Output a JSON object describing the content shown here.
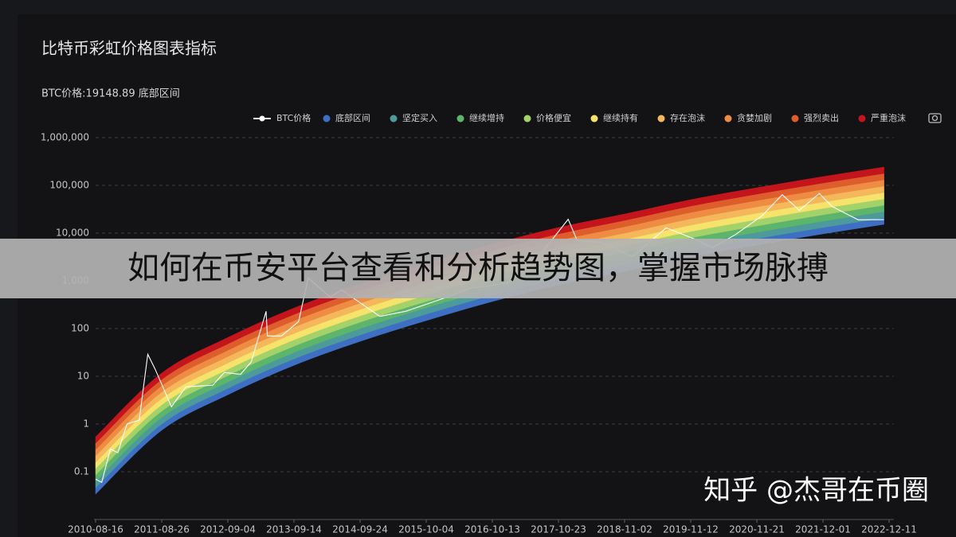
{
  "chart_data": {
    "type": "rainbow",
    "title": "比特币彩虹价格图表指标",
    "subtitle": "BTC价格:19148.89 底部区间",
    "log_scale": true,
    "grid": true,
    "ylim": [
      0.01,
      1000000
    ],
    "yticks": [
      0.1,
      1,
      10,
      100,
      {
        "value": 1000,
        "label": "1,000"
      },
      {
        "value": 10000,
        "label": "10,000"
      },
      {
        "value": 100000,
        "label": "100,000"
      },
      {
        "value": 1000000,
        "label": "1,000,000"
      }
    ],
    "xlim": [
      "2010-08-07",
      "2023-01-07"
    ],
    "xticks": [
      "2010-08-16",
      "2011-08-26",
      "2012-09-04",
      "2013-09-14",
      "2014-09-24",
      "2015-10-04",
      "2016-10-13",
      "2017-10-23",
      "2018-11-02",
      "2019-11-12",
      "2020-11-21",
      "2021-12-01",
      "2022-12-11"
    ],
    "x": [
      "2010-08-16",
      "2011-08-26",
      "2012-09-04",
      "2013-09-14",
      "2014-09-24",
      "2015-10-04",
      "2016-10-13",
      "2017-10-23",
      "2018-11-02",
      "2019-11-12",
      "2020-11-21",
      "2021-12-01",
      "2022-11-12"
    ],
    "series": [
      {
        "name": "BTC价格",
        "color": "#ffffff",
        "x": [
          "2010-08-16",
          "2010-09-20",
          "2010-11-08",
          "2010-12-20",
          "2011-02-10",
          "2011-04-20",
          "2011-06-08",
          "2011-07-20",
          "2011-10-20",
          "2012-01-10",
          "2012-06-10",
          "2012-08-15",
          "2012-11-15",
          "2013-01-15",
          "2013-04-09",
          "2013-04-16",
          "2013-07-05",
          "2013-10-10",
          "2013-12-04",
          "2014-04-10",
          "2014-06-10",
          "2015-01-14",
          "2015-06-10",
          "2016-01-10",
          "2016-06-15",
          "2017-01-05",
          "2017-06-10",
          "2017-12-17",
          "2018-02-06",
          "2018-06-20",
          "2018-12-15",
          "2019-06-26",
          "2019-12-17",
          "2020-03-13",
          "2020-07-20",
          "2020-12-20",
          "2021-04-14",
          "2021-07-20",
          "2021-11-10",
          "2022-01-22",
          "2022-06-18",
          "2022-11-12"
        ],
        "values": [
          0.07,
          0.06,
          0.3,
          0.25,
          1.0,
          1.2,
          29,
          14,
          2.3,
          6,
          6.5,
          12,
          11,
          20,
          230,
          70,
          70,
          140,
          1150,
          450,
          650,
          180,
          230,
          430,
          700,
          900,
          2500,
          19500,
          7000,
          6500,
          3200,
          12900,
          7200,
          4900,
          9200,
          23000,
          63500,
          30000,
          67500,
          36000,
          19000,
          19148.89
        ]
      },
      {
        "name": "底部区间",
        "color": "#3f6fc2",
        "values": [
          [
            0.034,
            0.046
          ],
          [
            0.74,
            1.0
          ],
          [
            4.1,
            5.57
          ],
          [
            17,
            23.1
          ],
          [
            54,
            73.4
          ],
          [
            147,
            200
          ],
          [
            369,
            501
          ],
          [
            826,
            1123
          ],
          [
            1585,
            2154
          ],
          [
            3162,
            4297
          ],
          [
            5623,
            7642
          ],
          [
            9620,
            13074
          ],
          [
            15250,
            20725
          ]
        ]
      },
      {
        "name": "坚定买入",
        "color": "#4d9a9c",
        "values": [
          [
            0.046,
            0.063
          ],
          [
            1.0,
            1.37
          ],
          [
            5.57,
            7.57
          ],
          [
            23.1,
            31.4
          ],
          [
            73.4,
            99.7
          ],
          [
            200,
            272
          ],
          [
            501,
            682
          ],
          [
            1123,
            1526
          ],
          [
            2154,
            2928
          ],
          [
            4297,
            5840
          ],
          [
            7642,
            10386
          ],
          [
            13074,
            17768
          ],
          [
            20725,
            28167
          ]
        ]
      },
      {
        "name": "继续增持",
        "color": "#5db56b",
        "values": [
          [
            0.063,
            0.085
          ],
          [
            1.37,
            1.86
          ],
          [
            7.57,
            10.3
          ],
          [
            31.4,
            42.7
          ],
          [
            99.7,
            136
          ],
          [
            272,
            369
          ],
          [
            682,
            926
          ],
          [
            1526,
            2073
          ],
          [
            2928,
            3978
          ],
          [
            5840,
            7937
          ],
          [
            10386,
            14114
          ],
          [
            17768,
            24146
          ],
          [
            28167,
            38278
          ]
        ]
      },
      {
        "name": "价格便宜",
        "color": "#a4d26a",
        "values": [
          [
            0.085,
            0.116
          ],
          [
            1.86,
            2.52
          ],
          [
            10.3,
            14.0
          ],
          [
            42.7,
            58.0
          ],
          [
            136,
            184
          ],
          [
            369,
            501
          ],
          [
            926,
            1258
          ],
          [
            2073,
            2817
          ],
          [
            3978,
            5405
          ],
          [
            7937,
            10782
          ],
          [
            14114,
            19174
          ],
          [
            24146,
            32804
          ],
          [
            38278,
            52003
          ]
        ]
      },
      {
        "name": "继续持有",
        "color": "#f5e36b",
        "values": [
          [
            0.116,
            0.158
          ],
          [
            2.52,
            3.43
          ],
          [
            14.0,
            19.0
          ],
          [
            58.0,
            78.9
          ],
          [
            184,
            251
          ],
          [
            501,
            682
          ],
          [
            1258,
            1712
          ],
          [
            2817,
            3833
          ],
          [
            5405,
            7354
          ],
          [
            10782,
            14672
          ],
          [
            19174,
            26091
          ],
          [
            32804,
            44637
          ],
          [
            52003,
            70760
          ]
        ]
      },
      {
        "name": "存在泡沫",
        "color": "#f5b75c",
        "values": [
          [
            0.158,
            0.215
          ],
          [
            3.43,
            4.67
          ],
          [
            19.0,
            25.9
          ],
          [
            78.9,
            107
          ],
          [
            251,
            341
          ],
          [
            682,
            928
          ],
          [
            1712,
            2328
          ],
          [
            3833,
            5212
          ],
          [
            7354,
            10001
          ],
          [
            14672,
            19952
          ],
          [
            26091,
            35481
          ],
          [
            44637,
            60702
          ],
          [
            70760,
            96228
          ]
        ]
      },
      {
        "name": "贪婪加剧",
        "color": "#ef8c43",
        "values": [
          [
            0.215,
            0.291
          ],
          [
            4.67,
            6.34
          ],
          [
            25.9,
            35.1
          ],
          [
            107,
            146
          ],
          [
            341,
            463
          ],
          [
            928,
            1260
          ],
          [
            2328,
            3162
          ],
          [
            5212,
            7079
          ],
          [
            10001,
            13583
          ],
          [
            19952,
            27098
          ],
          [
            35481,
            48189
          ],
          [
            60702,
            82443
          ],
          [
            96228,
            130693
          ]
        ]
      },
      {
        "name": "强烈卖出",
        "color": "#dd5d2c",
        "values": [
          [
            0.291,
            0.396
          ],
          [
            6.34,
            8.62
          ],
          [
            35.1,
            47.8
          ],
          [
            146,
            198
          ],
          [
            463,
            629
          ],
          [
            1260,
            1713
          ],
          [
            3162,
            4299
          ],
          [
            7079,
            9623
          ],
          [
            13583,
            18465
          ],
          [
            27098,
            36837
          ],
          [
            48189,
            65508
          ],
          [
            82443,
            112073
          ],
          [
            130693,
            177663
          ]
        ]
      },
      {
        "name": "严重泡沫",
        "color": "#c3151b",
        "values": [
          [
            0.396,
            0.539
          ],
          [
            8.62,
            11.7
          ],
          [
            47.8,
            65.0
          ],
          [
            198,
            269
          ],
          [
            629,
            856
          ],
          [
            1713,
            2330
          ],
          [
            4299,
            5849
          ],
          [
            9623,
            13092
          ],
          [
            18465,
            25122
          ],
          [
            36837,
            50118
          ],
          [
            65508,
            89125
          ],
          [
            112073,
            152477
          ],
          [
            177663,
            241713
          ]
        ]
      }
    ]
  },
  "banner": "如何在币安平台查看和分析趋势图，掌握市场脉搏",
  "watermark": "知乎 @杰哥在币圈"
}
